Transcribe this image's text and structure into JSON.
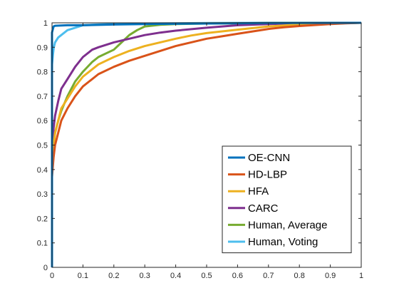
{
  "chart_data": {
    "type": "line",
    "title": "",
    "xlabel": "",
    "ylabel": "",
    "xlim": [
      0,
      1
    ],
    "ylim": [
      0,
      1
    ],
    "xticks": [
      "0",
      "0.1",
      "0.2",
      "0.3",
      "0.4",
      "0.5",
      "0.6",
      "0.7",
      "0.8",
      "0.9",
      "1"
    ],
    "yticks": [
      "0",
      "0.1",
      "0.2",
      "0.3",
      "0.4",
      "0.5",
      "0.6",
      "0.7",
      "0.8",
      "0.9",
      "1"
    ],
    "grid": false,
    "legend_position": "bottom-right",
    "series": [
      {
        "name": "OE-CNN",
        "color": "#0072BD",
        "x": [
          0,
          0,
          0.005,
          0.01,
          0.05,
          0.1,
          0.2,
          0.3,
          0.5,
          0.7,
          1
        ],
        "y": [
          0,
          0.96,
          0.985,
          0.988,
          0.99,
          0.99,
          0.993,
          0.995,
          0.997,
          0.999,
          1
        ]
      },
      {
        "name": "HD-LBP",
        "color": "#D95319",
        "x": [
          0,
          0.005,
          0.01,
          0.02,
          0.03,
          0.05,
          0.075,
          0.1,
          0.13,
          0.15,
          0.2,
          0.25,
          0.3,
          0.35,
          0.4,
          0.45,
          0.5,
          0.55,
          0.6,
          0.65,
          0.7,
          0.75,
          0.8,
          0.85,
          0.9,
          0.95,
          1
        ],
        "y": [
          0.37,
          0.45,
          0.5,
          0.55,
          0.6,
          0.65,
          0.7,
          0.74,
          0.77,
          0.79,
          0.82,
          0.845,
          0.865,
          0.885,
          0.905,
          0.92,
          0.935,
          0.945,
          0.955,
          0.965,
          0.975,
          0.982,
          0.987,
          0.991,
          0.995,
          0.998,
          1
        ]
      },
      {
        "name": "HFA",
        "color": "#EDB120",
        "x": [
          0,
          0.005,
          0.01,
          0.02,
          0.03,
          0.05,
          0.075,
          0.1,
          0.13,
          0.15,
          0.2,
          0.25,
          0.3,
          0.35,
          0.4,
          0.45,
          0.5,
          0.6,
          0.7,
          0.8,
          0.9,
          1
        ],
        "y": [
          0.45,
          0.5,
          0.55,
          0.6,
          0.65,
          0.69,
          0.74,
          0.78,
          0.81,
          0.83,
          0.86,
          0.885,
          0.905,
          0.92,
          0.935,
          0.948,
          0.958,
          0.972,
          0.985,
          0.993,
          0.997,
          1
        ]
      },
      {
        "name": "CARC",
        "color": "#7E2F8E",
        "x": [
          0,
          0.005,
          0.01,
          0.02,
          0.03,
          0.05,
          0.075,
          0.1,
          0.13,
          0.15,
          0.2,
          0.25,
          0.3,
          0.35,
          0.4,
          0.5,
          0.6,
          0.7,
          0.8,
          1
        ],
        "y": [
          0.48,
          0.57,
          0.62,
          0.68,
          0.73,
          0.77,
          0.82,
          0.86,
          0.89,
          0.9,
          0.92,
          0.935,
          0.95,
          0.96,
          0.968,
          0.98,
          0.99,
          0.995,
          0.998,
          1
        ]
      },
      {
        "name": "Human, Average",
        "color": "#77AC30",
        "x": [
          0,
          0.005,
          0.01,
          0.02,
          0.03,
          0.05,
          0.075,
          0.1,
          0.13,
          0.15,
          0.2,
          0.225,
          0.25,
          0.275,
          0.3,
          0.35,
          0.4,
          0.5,
          0.6,
          0.7,
          1
        ],
        "y": [
          0.47,
          0.5,
          0.55,
          0.6,
          0.64,
          0.7,
          0.76,
          0.8,
          0.84,
          0.86,
          0.89,
          0.92,
          0.95,
          0.97,
          0.985,
          0.992,
          0.995,
          0.997,
          0.998,
          0.999,
          1
        ]
      },
      {
        "name": "Human, Voting",
        "color": "#4DBEEE",
        "x": [
          0,
          0.003,
          0.006,
          0.01,
          0.015,
          0.02,
          0.03,
          0.05,
          0.075,
          0.1,
          0.15,
          0.2,
          0.3,
          0.5,
          0.7,
          1
        ],
        "y": [
          0.83,
          0.87,
          0.9,
          0.92,
          0.93,
          0.94,
          0.95,
          0.97,
          0.98,
          0.99,
          0.993,
          0.995,
          0.997,
          0.999,
          1,
          1
        ]
      }
    ]
  }
}
